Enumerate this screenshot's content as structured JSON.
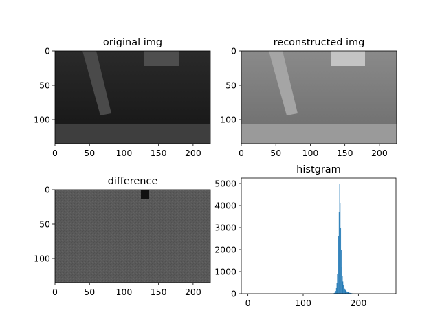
{
  "chart_data": [
    {
      "type": "image",
      "title": "original img",
      "xlim": [
        0,
        225
      ],
      "ylim": [
        135,
        0
      ],
      "xticks": [
        0,
        50,
        100,
        150,
        200
      ],
      "yticks": [
        0,
        50,
        100
      ]
    },
    {
      "type": "image",
      "title": "reconstructed img",
      "xlim": [
        0,
        225
      ],
      "ylim": [
        135,
        0
      ],
      "xticks": [
        0,
        50,
        100,
        150,
        200
      ],
      "yticks": [
        0,
        50,
        100
      ]
    },
    {
      "type": "image",
      "title": "difference",
      "xlim": [
        0,
        225
      ],
      "ylim": [
        135,
        0
      ],
      "xticks": [
        0,
        50,
        100,
        150,
        200
      ],
      "yticks": [
        0,
        50,
        100
      ]
    },
    {
      "type": "bar",
      "title": "histgram",
      "xlim": [
        -12,
        268
      ],
      "ylim": [
        0,
        5250
      ],
      "xticks": [
        0,
        100,
        200
      ],
      "yticks": [
        0,
        1000,
        2000,
        3000,
        4000,
        5000
      ],
      "color": "#1f77b4",
      "x": [
        155,
        156,
        157,
        158,
        159,
        160,
        161,
        162,
        163,
        164,
        165,
        166,
        167,
        168,
        169,
        170,
        171,
        172,
        173,
        174,
        175,
        176,
        177,
        178,
        179,
        180,
        181,
        182,
        183,
        184,
        185,
        186,
        187,
        188,
        189,
        190
      ],
      "values": [
        15,
        25,
        40,
        70,
        120,
        250,
        500,
        900,
        1600,
        2600,
        3700,
        4990,
        4100,
        3000,
        2000,
        1200,
        800,
        550,
        400,
        300,
        230,
        180,
        150,
        120,
        100,
        80,
        70,
        60,
        50,
        40,
        35,
        30,
        25,
        20,
        15,
        10
      ]
    }
  ]
}
